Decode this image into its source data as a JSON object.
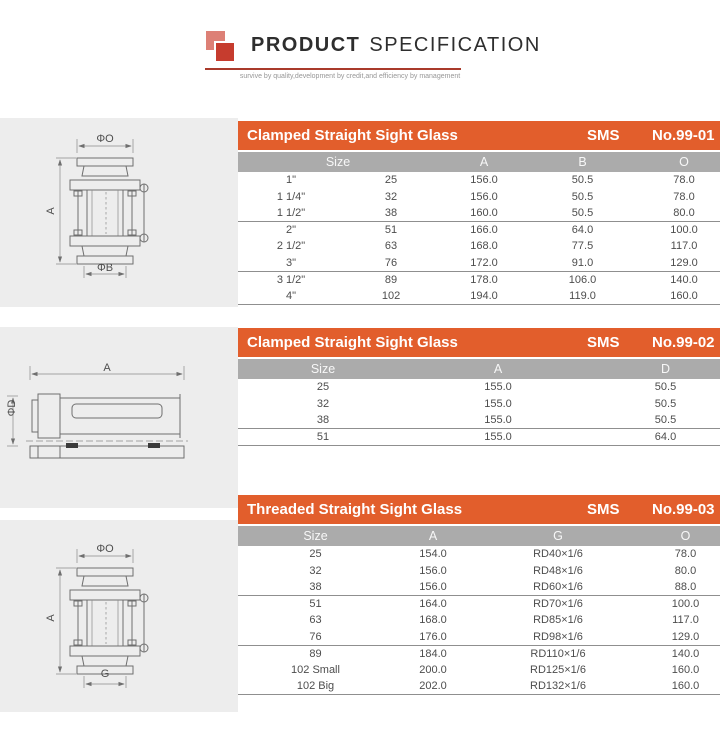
{
  "header": {
    "title_main": "PRODUCT",
    "title_sub": "SPECIFICATION",
    "tagline": "survive by quality,development by credit,and efficiency by management"
  },
  "colors": {
    "accent_orange": "#e25e2c",
    "table_header_gray": "#ababab",
    "panel_gray": "#ededed",
    "logo_red": "#c63c2e",
    "logo_red_light": "#dd8076",
    "rule_red": "#a93a2b"
  },
  "sections": [
    {
      "title": "Clamped Straight Sight Glass",
      "standard": "SMS",
      "number": "No.99-01",
      "drawing": {
        "top": "ΦO",
        "side": "A",
        "bottom": "ΦB"
      },
      "columns": [
        "Size",
        "A",
        "B",
        "O"
      ],
      "rows": [
        [
          "1\"",
          "25",
          "156.0",
          "50.5",
          "78.0"
        ],
        [
          "1 1/4\"",
          "32",
          "156.0",
          "50.5",
          "78.0"
        ],
        [
          "1 1/2\"",
          "38",
          "160.0",
          "50.5",
          "80.0"
        ],
        [
          "2\"",
          "51",
          "166.0",
          "64.0",
          "100.0"
        ],
        [
          "2 1/2\"",
          "63",
          "168.0",
          "77.5",
          "117.0"
        ],
        [
          "3\"",
          "76",
          "172.0",
          "91.0",
          "129.0"
        ],
        [
          "3 1/2\"",
          "89",
          "178.0",
          "106.0",
          "140.0"
        ],
        [
          "4\"",
          "102",
          "194.0",
          "119.0",
          "160.0"
        ]
      ],
      "group_breaks": [
        3,
        6
      ]
    },
    {
      "title": "Clamped Straight Sight Glass",
      "standard": "SMS",
      "number": "No.99-02",
      "drawing": {
        "top": "A",
        "side": "ΦD"
      },
      "columns": [
        "Size",
        "A",
        "D"
      ],
      "rows": [
        [
          "25",
          "155.0",
          "50.5"
        ],
        [
          "32",
          "155.0",
          "50.5"
        ],
        [
          "38",
          "155.0",
          "50.5"
        ],
        [
          "51",
          "155.0",
          "64.0"
        ]
      ],
      "group_breaks": [
        3
      ]
    },
    {
      "title": "Threaded Straight Sight Glass",
      "standard": "SMS",
      "number": "No.99-03",
      "drawing": {
        "top": "ΦO",
        "side": "A",
        "bottom": "G"
      },
      "columns": [
        "Size",
        "A",
        "G",
        "O"
      ],
      "rows": [
        [
          "25",
          "154.0",
          "RD40×1/6",
          "78.0"
        ],
        [
          "32",
          "156.0",
          "RD48×1/6",
          "80.0"
        ],
        [
          "38",
          "156.0",
          "RD60×1/6",
          "88.0"
        ],
        [
          "51",
          "164.0",
          "RD70×1/6",
          "100.0"
        ],
        [
          "63",
          "168.0",
          "RD85×1/6",
          "117.0"
        ],
        [
          "76",
          "176.0",
          "RD98×1/6",
          "129.0"
        ],
        [
          "89",
          "184.0",
          "RD110×1/6",
          "140.0"
        ],
        [
          "102 Small",
          "200.0",
          "RD125×1/6",
          "160.0"
        ],
        [
          "102 Big",
          "202.0",
          "RD132×1/6",
          "160.0"
        ]
      ],
      "group_breaks": [
        3,
        6
      ]
    }
  ]
}
